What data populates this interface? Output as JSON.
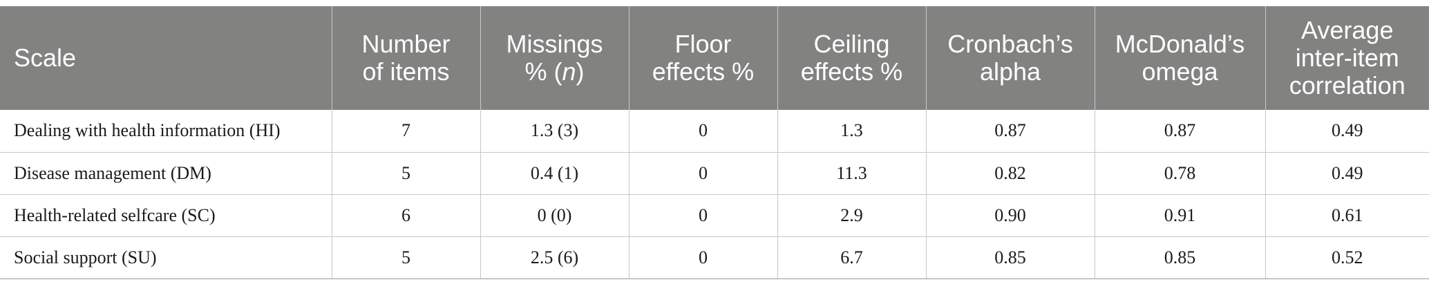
{
  "table": {
    "headers": [
      {
        "line1": "Scale",
        "line2": "",
        "line3": ""
      },
      {
        "line1": "Number",
        "line2": "of items",
        "line3": ""
      },
      {
        "line1": "Missings",
        "line2_pre": "% (",
        "line2_em": "n",
        "line2_post": ")",
        "line3": ""
      },
      {
        "line1": "Floor",
        "line2": "effects %",
        "line3": ""
      },
      {
        "line1": "Ceiling",
        "line2": "effects %",
        "line3": ""
      },
      {
        "line1": "Cronbach’s",
        "line2": "alpha",
        "line3": ""
      },
      {
        "line1": "McDonald’s",
        "line2": "omega",
        "line3": ""
      },
      {
        "line1": "Average",
        "line2": "inter-item",
        "line3": "correlation"
      }
    ],
    "rows": [
      [
        "Dealing with health information (HI)",
        "7",
        "1.3 (3)",
        "0",
        "1.3",
        "0.87",
        "0.87",
        "0.49"
      ],
      [
        "Disease management (DM)",
        "5",
        "0.4 (1)",
        "0",
        "11.3",
        "0.82",
        "0.78",
        "0.49"
      ],
      [
        "Health-related selfcare (SC)",
        "6",
        "0 (0)",
        "0",
        "2.9",
        "0.90",
        "0.91",
        "0.61"
      ],
      [
        "Social support (SU)",
        "5",
        "2.5 (6)",
        "0",
        "6.7",
        "0.85",
        "0.85",
        "0.52"
      ]
    ]
  }
}
